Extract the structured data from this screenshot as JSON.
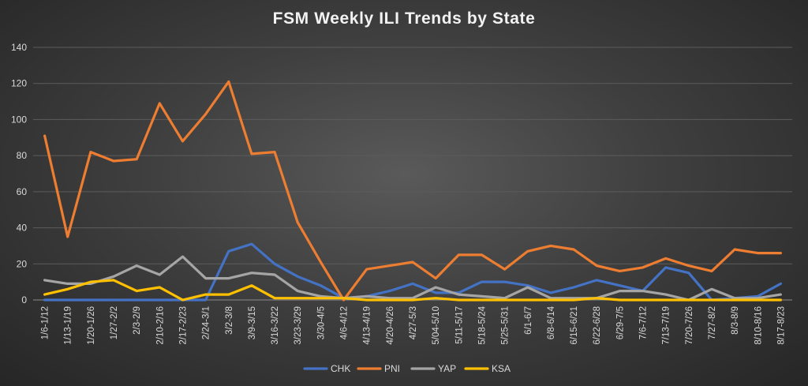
{
  "chart_data": {
    "type": "line",
    "title": "FSM Weekly ILI Trends by State",
    "xlabel": "",
    "ylabel": "",
    "ylim": [
      0,
      140
    ],
    "yticks": [
      0,
      20,
      40,
      60,
      80,
      100,
      120,
      140
    ],
    "grid": "horizontal",
    "legend": "bottom",
    "categories": [
      "1/6-1/12",
      "1/13-1/19",
      "1/20-1/26",
      "1/27-2/2",
      "2/3-2/9",
      "2/10-2/16",
      "2/17-2/23",
      "2/24-3/1",
      "3/2-3/8",
      "3/9-3/15",
      "3/16-3/22",
      "3/23-3/29",
      "3/30-4/5",
      "4/6-4/12",
      "4/13-4/19",
      "4/20-4/26",
      "4/27-5/3",
      "5/04-5/10",
      "5/11-5/17",
      "5/18-5/24",
      "5/25-5/31",
      "6/1-6/7",
      "6/8-6/14",
      "6/15-6/21",
      "6/22-6/28",
      "6/29-7/5",
      "7/6-7/12",
      "7/13-7/19",
      "7/20-7/26",
      "7/27-8/2",
      "8/3-8/9",
      "8/10-8/16",
      "8/17-8/23"
    ],
    "series": [
      {
        "name": "CHK",
        "color": "#4472c4",
        "values": [
          0,
          0,
          0,
          0,
          0,
          0,
          0,
          0,
          27,
          31,
          20,
          13,
          8,
          1,
          2,
          5,
          9,
          4,
          4,
          10,
          10,
          8,
          4,
          7,
          11,
          8,
          5,
          18,
          15,
          0,
          1,
          2,
          9
        ]
      },
      {
        "name": "PNI",
        "color": "#ed7d31",
        "values": [
          91,
          35,
          82,
          77,
          78,
          109,
          88,
          103,
          121,
          81,
          82,
          43,
          21,
          0,
          17,
          19,
          21,
          12,
          25,
          25,
          17,
          27,
          30,
          28,
          19,
          16,
          18,
          23,
          19,
          16,
          28,
          26,
          26
        ]
      },
      {
        "name": "YAP",
        "color": "#a5a5a5",
        "values": [
          11,
          9,
          9,
          13,
          19,
          14,
          24,
          12,
          12,
          15,
          14,
          5,
          2,
          1,
          2,
          1,
          1,
          7,
          3,
          2,
          1,
          7,
          1,
          1,
          1,
          5,
          5,
          3,
          0,
          6,
          1,
          1,
          3
        ]
      },
      {
        "name": "KSA",
        "color": "#ffc000",
        "values": [
          3,
          6,
          10,
          11,
          5,
          7,
          0,
          3,
          3,
          8,
          1,
          1,
          1,
          1,
          0,
          0,
          0,
          1,
          0,
          0,
          0,
          0,
          0,
          0,
          1,
          0,
          0,
          0,
          0,
          0,
          0,
          0,
          0
        ]
      }
    ]
  }
}
